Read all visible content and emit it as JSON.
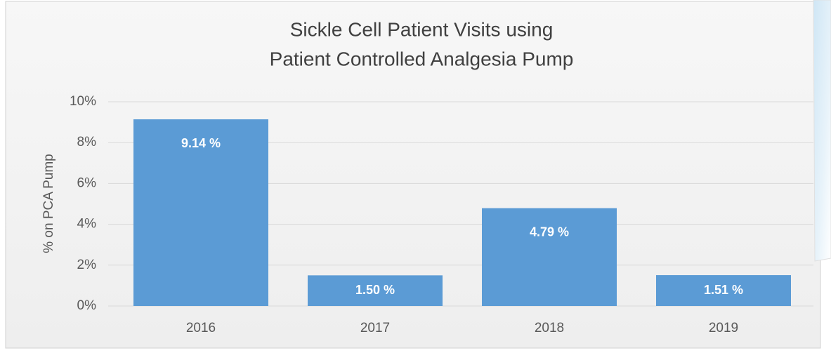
{
  "chart_data": {
    "type": "bar",
    "title": [
      "Sickle Cell Patient Visits using",
      "Patient Controlled Analgesia Pump"
    ],
    "y_label": "% on PCA Pump",
    "categories": [
      "2016",
      "2017",
      "2018",
      "2019"
    ],
    "values": [
      9.14,
      1.5,
      4.79,
      1.51
    ],
    "value_labels": [
      "9.14 %",
      "1.50 %",
      "4.79 %",
      "1.51 %"
    ],
    "color": "#5b9bd5",
    "ylim": [
      0,
      10
    ],
    "yticks": [
      {
        "value": 0,
        "label": "0%"
      },
      {
        "value": 2,
        "label": "2%"
      },
      {
        "value": 4,
        "label": "4%"
      },
      {
        "value": 6,
        "label": "6%"
      },
      {
        "value": 8,
        "label": "8%"
      },
      {
        "value": 10,
        "label": "10%"
      }
    ],
    "grid": true
  }
}
